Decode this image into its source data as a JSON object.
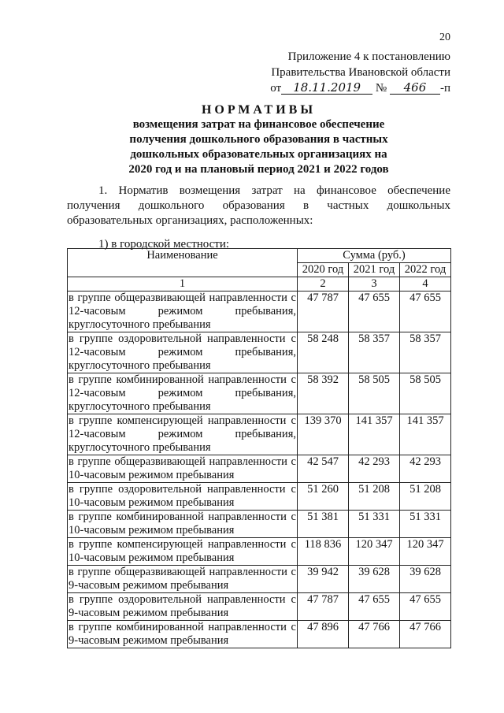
{
  "page_number": "20",
  "appendix": {
    "line1": "Приложение 4 к постановлению",
    "line2": "Правительства Ивановской области",
    "from_label": "от",
    "date": "18.11.2019",
    "number_label": "№",
    "number": "466",
    "suffix": "-п"
  },
  "title": {
    "main": "НОРМАТИВЫ",
    "subtitle": "возмещения затрат на финансовое обеспечение получения дошкольного образования в частных дошкольных образовательных организациях на 2020 год и на плановый период 2021 и 2022 годов"
  },
  "paragraph": "1. Норматив возмещения затрат на финансовое обеспечение получения дошкольного образования в частных дошкольных образовательных организациях, расположенных:",
  "subheading": "1) в городской местности:",
  "table": {
    "header_name": "Наименование",
    "header_sum": "Сумма (руб.)",
    "years": [
      "2020 год",
      "2021 год",
      "2022 год"
    ],
    "col_numbers": [
      "1",
      "2",
      "3",
      "4"
    ],
    "rows": [
      {
        "name": "в группе общеразвивающей направленности с 12-часовым режимом пребывания, круглосуточного пребывания",
        "v": [
          "47 787",
          "47 655",
          "47 655"
        ]
      },
      {
        "name": "в группе оздоровительной направленности с 12-часовым режимом пребывания, круглосуточного пребывания",
        "v": [
          "58 248",
          "58 357",
          "58 357"
        ]
      },
      {
        "name": "в группе комбинированной направленности с 12-часовым режимом пребывания, круглосуточного пребывания",
        "v": [
          "58 392",
          "58 505",
          "58 505"
        ]
      },
      {
        "name": "в группе компенсирующей направленности с 12-часовым режимом пребывания, круглосуточного пребывания",
        "v": [
          "139 370",
          "141 357",
          "141 357"
        ]
      },
      {
        "name": "в группе общеразвивающей направленности с 10-часовым режимом пребывания",
        "v": [
          "42 547",
          "42 293",
          "42 293"
        ]
      },
      {
        "name": "в группе оздоровительной направленности с 10-часовым режимом пребывания",
        "v": [
          "51 260",
          "51 208",
          "51 208"
        ]
      },
      {
        "name": "в группе комбинированной направленности с 10-часовым режимом пребывания",
        "v": [
          "51 381",
          "51 331",
          "51 331"
        ]
      },
      {
        "name": "в группе компенсирующей направленности с 10-часовым режимом пребывания",
        "v": [
          "118 836",
          "120 347",
          "120 347"
        ]
      },
      {
        "name": "в группе общеразвивающей направленности с 9-часовым режимом пребывания",
        "v": [
          "39 942",
          "39 628",
          "39 628"
        ]
      },
      {
        "name": "в группе оздоровительной направленности с 9-часовым режимом пребывания",
        "v": [
          "47 787",
          "47 655",
          "47 655"
        ]
      },
      {
        "name": "в группе комбинированной направленности с 9-часовым режимом пребывания",
        "v": [
          "47 896",
          "47 766",
          "47 766"
        ]
      }
    ]
  }
}
